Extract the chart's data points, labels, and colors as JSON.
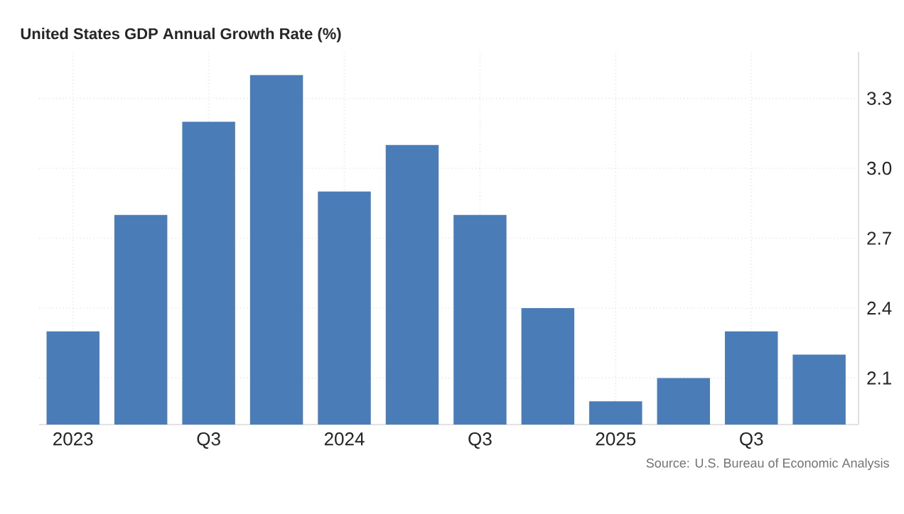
{
  "chart_data": {
    "type": "bar",
    "title": "United States GDP Annual Growth Rate (%)",
    "categories": [
      "2023",
      null,
      "Q3",
      null,
      "2024",
      null,
      "Q3",
      null,
      "2025",
      null,
      "Q3",
      null
    ],
    "values": [
      2.3,
      2.8,
      3.2,
      3.4,
      2.9,
      3.1,
      2.8,
      2.4,
      2.0,
      2.1,
      2.3,
      2.2
    ],
    "color": "#4a7db8",
    "ylim": [
      1.9,
      3.5
    ],
    "yticks": [
      2.1,
      2.4,
      2.7,
      {
        "value": 3,
        "label": "3.0"
      },
      3.3
    ],
    "grid": true,
    "annotations": [
      "Source: U.S. Bureau of Economic Analysis"
    ]
  }
}
